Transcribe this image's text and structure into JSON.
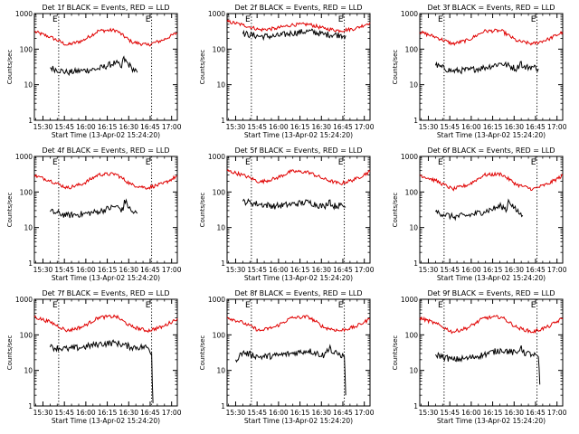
{
  "chart_data": [
    {
      "type": "line",
      "title": "Det 1f BLACK = Events, RED = LLD",
      "ylabel": "Counts/sec",
      "xlabel": "Start Time (13-Apr-02 15:24:20)",
      "yscale": "log",
      "ylim": [
        1,
        1000
      ],
      "yticks": [
        "1",
        "10",
        "100",
        "1000"
      ],
      "xlim": [
        "15:24",
        "17:04"
      ],
      "xticks": [
        "15:30",
        "15:45",
        "16:00",
        "16:15",
        "16:30",
        "16:45",
        "17:00"
      ],
      "markers": [
        {
          "time": "15:41",
          "label": "E"
        },
        {
          "time": "16:46",
          "label": "E"
        }
      ],
      "series": [
        {
          "name": "LLD",
          "color": "#e00000",
          "x": [
            "15:24",
            "15:35",
            "15:47",
            "15:58",
            "16:09",
            "16:21",
            "16:32",
            "16:43",
            "16:54",
            "17:04"
          ],
          "y": [
            310,
            220,
            130,
            175,
            330,
            340,
            160,
            130,
            180,
            290
          ]
        },
        {
          "name": "Events",
          "color": "#000000",
          "x": [
            "15:35",
            "15:47",
            "15:58",
            "16:09",
            "16:21",
            "16:25",
            "16:26",
            "16:32",
            "16:36"
          ],
          "y": [
            30,
            22,
            25,
            28,
            42,
            30,
            55,
            30,
            22
          ]
        }
      ]
    },
    {
      "type": "line",
      "title": "Det 2f BLACK = Events, RED = LLD",
      "ylabel": "Counts/sec",
      "xlabel": "Start Time (13-Apr-02 15:24:20)",
      "yscale": "log",
      "ylim": [
        1,
        1000
      ],
      "yticks": [
        "1",
        "10",
        "100",
        "1000"
      ],
      "xlim": [
        "15:24",
        "17:04"
      ],
      "xticks": [
        "15:30",
        "15:45",
        "16:00",
        "16:15",
        "16:30",
        "16:45",
        "17:00"
      ],
      "markers": [
        {
          "time": "15:41",
          "label": "E"
        },
        {
          "time": "16:46",
          "label": "E"
        }
      ],
      "series": [
        {
          "name": "LLD",
          "color": "#e00000",
          "x": [
            "15:24",
            "15:35",
            "15:47",
            "15:58",
            "16:09",
            "16:21",
            "16:32",
            "16:43",
            "16:54",
            "17:04"
          ],
          "y": [
            600,
            480,
            350,
            380,
            480,
            500,
            380,
            330,
            380,
            560
          ]
        },
        {
          "name": "Events",
          "color": "#000000",
          "x": [
            "15:35",
            "15:47",
            "15:58",
            "16:09",
            "16:21",
            "16:32",
            "16:43",
            "16:47"
          ],
          "y": [
            270,
            230,
            230,
            280,
            320,
            260,
            250,
            240
          ]
        }
      ]
    },
    {
      "type": "line",
      "title": "Det 3f BLACK = Events, RED = LLD",
      "ylabel": "Counts/sec",
      "xlabel": "Start Time (13-Apr-02 15:24:20)",
      "yscale": "log",
      "ylim": [
        1,
        1000
      ],
      "yticks": [
        "1",
        "10",
        "100",
        "1000"
      ],
      "xlim": [
        "15:24",
        "17:04"
      ],
      "xticks": [
        "15:30",
        "15:45",
        "16:00",
        "16:15",
        "16:30",
        "16:45",
        "17:00"
      ],
      "markers": [
        {
          "time": "15:41",
          "label": "E"
        },
        {
          "time": "16:46",
          "label": "E"
        }
      ],
      "series": [
        {
          "name": "LLD",
          "color": "#e00000",
          "x": [
            "15:24",
            "15:35",
            "15:47",
            "15:58",
            "16:09",
            "16:21",
            "16:32",
            "16:43",
            "16:54",
            "17:04"
          ],
          "y": [
            300,
            220,
            140,
            180,
            320,
            330,
            170,
            140,
            190,
            300
          ]
        },
        {
          "name": "Events",
          "color": "#000000",
          "x": [
            "15:35",
            "15:47",
            "15:58",
            "16:09",
            "16:21",
            "16:32",
            "16:35",
            "16:36",
            "16:43",
            "16:47"
          ],
          "y": [
            35,
            24,
            26,
            30,
            40,
            28,
            45,
            30,
            32,
            28
          ]
        }
      ]
    },
    {
      "type": "line",
      "title": "Det 4f BLACK = Events, RED = LLD",
      "ylabel": "Counts/sec",
      "xlabel": "Start Time (13-Apr-02 15:24:20)",
      "yscale": "log",
      "ylim": [
        1,
        1000
      ],
      "yticks": [
        "1",
        "10",
        "100",
        "1000"
      ],
      "xlim": [
        "15:24",
        "17:04"
      ],
      "xticks": [
        "15:30",
        "15:45",
        "16:00",
        "16:15",
        "16:30",
        "16:45",
        "17:00"
      ],
      "markers": [
        {
          "time": "15:41",
          "label": "E"
        },
        {
          "time": "16:46",
          "label": "E"
        }
      ],
      "series": [
        {
          "name": "LLD",
          "color": "#e00000",
          "x": [
            "15:24",
            "15:35",
            "15:47",
            "15:58",
            "16:09",
            "16:21",
            "16:32",
            "16:43",
            "16:54",
            "17:04"
          ],
          "y": [
            290,
            210,
            130,
            170,
            310,
            320,
            160,
            130,
            170,
            280
          ]
        },
        {
          "name": "Events",
          "color": "#000000",
          "x": [
            "15:35",
            "15:47",
            "15:58",
            "16:09",
            "16:21",
            "16:26",
            "16:27",
            "16:32",
            "16:36"
          ],
          "y": [
            28,
            22,
            24,
            28,
            40,
            30,
            60,
            28,
            25
          ]
        }
      ]
    },
    {
      "type": "line",
      "title": "Det 5f BLACK = Events, RED = LLD",
      "ylabel": "Counts/sec",
      "xlabel": "Start Time (13-Apr-02 15:24:20)",
      "yscale": "log",
      "ylim": [
        1,
        1000
      ],
      "yticks": [
        "1",
        "10",
        "100",
        "1000"
      ],
      "xlim": [
        "15:24",
        "17:04"
      ],
      "xticks": [
        "15:30",
        "15:45",
        "16:00",
        "16:15",
        "16:30",
        "16:45",
        "17:00"
      ],
      "markers": [
        {
          "time": "15:41",
          "label": "E"
        },
        {
          "time": "16:46",
          "label": "E"
        }
      ],
      "series": [
        {
          "name": "LLD",
          "color": "#e00000",
          "x": [
            "15:24",
            "15:35",
            "15:47",
            "15:58",
            "16:09",
            "16:21",
            "16:32",
            "16:43",
            "16:54",
            "17:04"
          ],
          "y": [
            400,
            300,
            190,
            240,
            380,
            360,
            230,
            170,
            230,
            380
          ]
        },
        {
          "name": "Events",
          "color": "#000000",
          "x": [
            "15:35",
            "15:47",
            "15:58",
            "16:09",
            "16:21",
            "16:32",
            "16:36",
            "16:37",
            "16:43",
            "16:47"
          ],
          "y": [
            55,
            45,
            40,
            45,
            52,
            38,
            60,
            40,
            42,
            38
          ]
        }
      ]
    },
    {
      "type": "line",
      "title": "Det 6f BLACK = Events, RED = LLD",
      "ylabel": "Counts/sec",
      "xlabel": "Start Time (13-Apr-02 15:24:20)",
      "yscale": "log",
      "ylim": [
        1,
        1000
      ],
      "yticks": [
        "1",
        "10",
        "100",
        "1000"
      ],
      "xlim": [
        "15:24",
        "17:04"
      ],
      "xticks": [
        "15:30",
        "15:45",
        "16:00",
        "16:15",
        "16:30",
        "16:45",
        "17:00"
      ],
      "markers": [
        {
          "time": "15:41",
          "label": "E"
        },
        {
          "time": "16:46",
          "label": "E"
        }
      ],
      "series": [
        {
          "name": "LLD",
          "color": "#e00000",
          "x": [
            "15:24",
            "15:35",
            "15:47",
            "15:58",
            "16:09",
            "16:21",
            "16:32",
            "16:43",
            "16:54",
            "17:04"
          ],
          "y": [
            300,
            210,
            120,
            160,
            300,
            320,
            160,
            120,
            170,
            290
          ]
        },
        {
          "name": "Events",
          "color": "#000000",
          "x": [
            "15:35",
            "15:47",
            "15:58",
            "16:09",
            "16:21",
            "16:25",
            "16:26",
            "16:32",
            "16:36"
          ],
          "y": [
            28,
            20,
            22,
            28,
            40,
            32,
            60,
            28,
            22
          ]
        }
      ]
    },
    {
      "type": "line",
      "title": "Det 7f BLACK = Events, RED = LLD",
      "ylabel": "Counts/sec",
      "xlabel": "Start Time (13-Apr-02 15:24:20)",
      "yscale": "log",
      "ylim": [
        1,
        1000
      ],
      "yticks": [
        "1",
        "10",
        "100",
        "1000"
      ],
      "xlim": [
        "15:24",
        "17:04"
      ],
      "xticks": [
        "15:30",
        "15:45",
        "16:00",
        "16:15",
        "16:30",
        "16:45",
        "17:00"
      ],
      "markers": [
        {
          "time": "15:41",
          "label": "E"
        },
        {
          "time": "16:46",
          "label": "E"
        }
      ],
      "series": [
        {
          "name": "LLD",
          "color": "#e00000",
          "x": [
            "15:24",
            "15:35",
            "15:47",
            "15:58",
            "16:09",
            "16:21",
            "16:32",
            "16:43",
            "16:54",
            "17:04"
          ],
          "y": [
            320,
            230,
            130,
            170,
            310,
            330,
            170,
            130,
            170,
            290
          ]
        },
        {
          "name": "Events",
          "color": "#000000",
          "x": [
            "15:35",
            "15:47",
            "15:58",
            "16:09",
            "16:21",
            "16:32",
            "16:43",
            "16:46",
            "16:47"
          ],
          "y": [
            45,
            40,
            45,
            55,
            60,
            45,
            45,
            30,
            1.2
          ]
        }
      ]
    },
    {
      "type": "line",
      "title": "Det 8f BLACK = Events, RED = LLD",
      "ylabel": "Counts/sec",
      "xlabel": "Start Time (13-Apr-02 15:24:20)",
      "yscale": "log",
      "ylim": [
        1,
        1000
      ],
      "yticks": [
        "1",
        "10",
        "100",
        "1000"
      ],
      "xlim": [
        "15:24",
        "17:04"
      ],
      "xticks": [
        "15:30",
        "15:45",
        "16:00",
        "16:15",
        "16:30",
        "16:45",
        "17:00"
      ],
      "markers": [
        {
          "time": "15:41",
          "label": "E"
        },
        {
          "time": "16:46",
          "label": "E"
        }
      ],
      "series": [
        {
          "name": "LLD",
          "color": "#e00000",
          "x": [
            "15:24",
            "15:35",
            "15:47",
            "15:58",
            "16:09",
            "16:21",
            "16:32",
            "16:43",
            "16:54",
            "17:04"
          ],
          "y": [
            310,
            220,
            130,
            170,
            300,
            320,
            160,
            130,
            170,
            280
          ]
        },
        {
          "name": "Events",
          "color": "#000000",
          "x": [
            "15:30",
            "15:35",
            "15:47",
            "15:58",
            "16:09",
            "16:21",
            "16:32",
            "16:36",
            "16:37",
            "16:43",
            "16:46",
            "16:47"
          ],
          "y": [
            20,
            32,
            24,
            26,
            30,
            36,
            26,
            50,
            32,
            28,
            25,
            2
          ]
        }
      ]
    },
    {
      "type": "line",
      "title": "Det 9f BLACK = Events, RED = LLD",
      "ylabel": "Counts/sec",
      "xlabel": "Start Time (13-Apr-02 15:24:20)",
      "yscale": "log",
      "ylim": [
        1,
        1000
      ],
      "yticks": [
        "1",
        "10",
        "100",
        "1000"
      ],
      "xlim": [
        "15:24",
        "17:04"
      ],
      "xticks": [
        "15:30",
        "15:45",
        "16:00",
        "16:15",
        "16:30",
        "16:45",
        "17:00"
      ],
      "markers": [
        {
          "time": "15:41",
          "label": "E"
        },
        {
          "time": "16:46",
          "label": "E"
        }
      ],
      "series": [
        {
          "name": "LLD",
          "color": "#e00000",
          "x": [
            "15:24",
            "15:35",
            "15:47",
            "15:58",
            "16:09",
            "16:21",
            "16:32",
            "16:43",
            "16:54",
            "17:04"
          ],
          "y": [
            300,
            210,
            120,
            160,
            300,
            320,
            160,
            120,
            170,
            290
          ]
        },
        {
          "name": "Events",
          "color": "#000000",
          "x": [
            "15:35",
            "15:47",
            "15:58",
            "16:09",
            "16:21",
            "16:32",
            "16:35",
            "16:36",
            "16:43",
            "16:47",
            "16:48"
          ],
          "y": [
            28,
            20,
            22,
            28,
            38,
            30,
            50,
            32,
            28,
            24,
            4
          ]
        }
      ]
    }
  ]
}
